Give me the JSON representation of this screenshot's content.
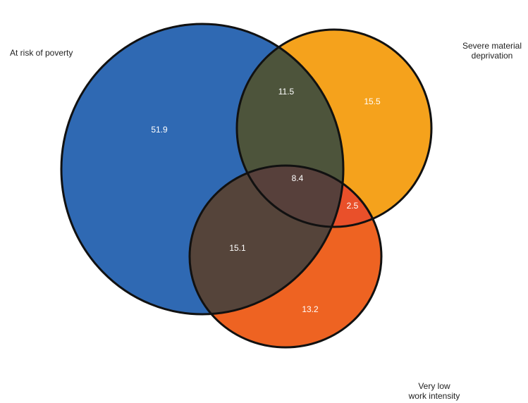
{
  "labels": {
    "poverty": "At risk of poverty",
    "deprivation_line1": "Severe material",
    "deprivation_line2": "deprivation",
    "work_line1": "Very low",
    "work_line2": "work intensity"
  },
  "regions": {
    "poverty_only": "51.9",
    "poverty_deprivation": "11.5",
    "deprivation_only": "15.5",
    "all_three": "8.4",
    "deprivation_work": "2.5",
    "poverty_work": "15.1",
    "work_only": "13.2"
  },
  "colors": {
    "poverty": "#2f69b3",
    "deprivation": "#f5a21c",
    "work": "#ee6322",
    "poverty_deprivation": "#4d543b",
    "poverty_work": "#55443a",
    "all_three": "#57403b",
    "deprivation_work": "#e9502a",
    "outline": "#111111"
  }
}
